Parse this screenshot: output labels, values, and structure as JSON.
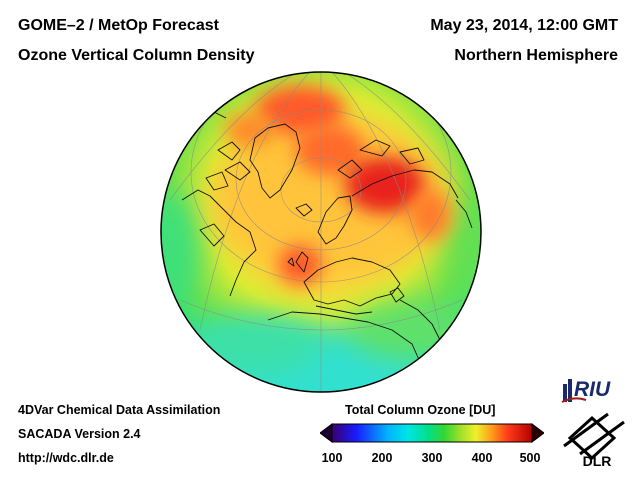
{
  "header": {
    "title_line1": "GOME–2 / MetOp Forecast",
    "title_line2": "Ozone Vertical Column Density",
    "date": "May 23, 2014, 12:00 GMT",
    "region": "Northern Hemisphere"
  },
  "footer": {
    "method": "4DVar Chemical Data Assimilation",
    "version": "SACADA Version 2.4",
    "url": "http://wdc.dlr.de"
  },
  "legend": {
    "title": "Total Column Ozone [DU]",
    "ticks": [
      "100",
      "200",
      "300",
      "400",
      "500"
    ],
    "range": [
      100,
      500
    ],
    "colors": [
      "#000000",
      "#3a006b",
      "#1a1aff",
      "#00b4ff",
      "#00e5e5",
      "#00e08a",
      "#33d633",
      "#9be02a",
      "#f0f02a",
      "#ffd21a",
      "#ff9a1a",
      "#ff4a1a",
      "#e01a1a",
      "#b40000",
      "#3a0000"
    ]
  },
  "logos": {
    "riu": "RIU",
    "dlr": "DLR"
  }
}
